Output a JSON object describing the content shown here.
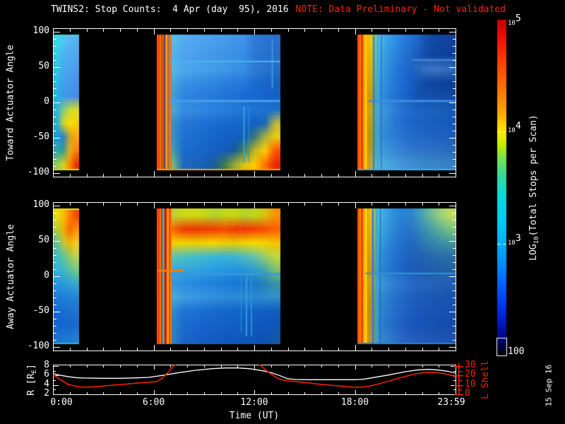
{
  "page": {
    "title": "TWINS2: Stop Counts:  4 Apr (day  95), 2016",
    "note": "NOTE: Data Preliminary - Not validated",
    "date_stamp": "15 Sep 16",
    "colors": {
      "background": "#000000",
      "foreground": "#ffffff",
      "alert": "#ff2000"
    }
  },
  "chart_data": [
    {
      "type": "heatmap",
      "id": "toward",
      "ylabel": "Toward Actuator Angle",
      "ylim": [
        -100,
        100
      ],
      "ytick_labels": [
        "100",
        "50",
        "0",
        "-50",
        "-100"
      ],
      "ytick_values": [
        100,
        50,
        0,
        -50,
        -100
      ],
      "x_range_hours": [
        0,
        24
      ],
      "grid": "off",
      "chunks": [
        {
          "h0": 0.05,
          "h1": 1.55,
          "top_edge": "#40d8e8",
          "bottom_edge": "#d8dc20",
          "rows": [
            "38d8e8 50c8f0 58b8f0 58b0f0",
            "34cce8 4cb4f0 52acf0 52a6ee",
            "30c4e6 46aaee 4ea2ee 4c9cec",
            "2cbae4 42a2ec 4a9aec 4892ea",
            "28b2e2 3e9aea 4692ea 448ae8",
            "30b4d4 80cc80 c0dc38 e0dc20",
            "28acd0 d8d028 f8e000 f8d400",
            "1c9cd8 2a84cc c8a030 ffa800",
            "28a4b0 3c9c90 e0b020 ff8000",
            "90cc58 d0d420 ff8800 e83000"
          ]
        },
        {
          "h0": 6.2,
          "h1": 13.55,
          "stripe_hours": 0.85,
          "bottom_edge": "#f0a800",
          "stripes": [
            "#ff6000",
            "#e83000",
            "#ff9000",
            "#c02800",
            "#ff7800",
            "#183cc0",
            "#ff5000",
            "#ffb800",
            "#f04000",
            "#30b8d8",
            "#ff6800"
          ],
          "hstreaks": [
            {
              "a": 58,
              "x0": 0.1,
              "x1": 1,
              "c": "#50b0f0",
              "w": 2
            },
            {
              "a": 2,
              "x0": 0.1,
              "x1": 1,
              "c": "#48a0e8",
              "w": 3
            }
          ],
          "vstreaks": [
            {
              "f": 0.7,
              "a0": -5,
              "a1": -85,
              "c": "#34a0e0",
              "w": 2
            },
            {
              "f": 0.74,
              "a0": -5,
              "a1": -85,
              "c": "#2e90dc",
              "w": 1
            },
            {
              "f": 0.93,
              "a0": 90,
              "a1": 20,
              "c": "#3c96e8",
              "w": 2
            }
          ],
          "rows": [
            "ff5800 58c0e8 56acf0 52a8f0 4ea4ee 4aa0ec 469cea 4296e8 3e92e8 2e7ad6 2a74d0 2870cc",
            "ff5800 50b8e4 4ea4ee 4aa0ec 469cea 4298e8 3e94e6 3a90e6 368ce4 2a78d4 2672ce 246cc8",
            "ff5800 54bce6 50aaee 4ca6ec 48a2ea 449eea 409ae8 3c94e6 3890e4 2c7cd6 2876d0 266fca",
            "ff5800 44aadc 3c92e6 388ee4 348ae2 3086e0 2c80de 287cdc 2478da 1c6cd0 1a66c8 1862c2",
            "ff5800 3ca2d6 3284e0 2e80de 2a7cdc 2678da 2274d8 1e70d6 1a6cd2 1868d0 1664cc 1562c8",
            "ff6000 48acd4 3a90e4 368ce2 3288e0 2e84de 2a80dc 267cda 2278d6 2074d4 1e72d0 1c70ce",
            "ff6000 3494cc 2678d6 2274d4 1e70d2 1c6cd0 1868ce 1666cc 1464ca 1260c6 1c68b8 c0b838",
            "ff6000 3294c8 2272d2 1e6ed0 1a6ace 1866cc 1562c8 1260c6 125eb8 3a7a78 a8b040 f0cc10",
            "ff5800 40a0b0 1e6ccc 1a68ca 1864c8 1560c4 125cc0 155c9c 48824c c0b824 fcd000 ff5000",
            "ff5800 78bc78 2068c0 1c64bc 1a60b8 185c9c 3c7850 90a838 e0c410 ffc800 ff7000 e82800"
          ]
        },
        {
          "h0": 18.15,
          "h1": 24.0,
          "stripe_hours": 0.55,
          "bottom_edge": "#38b8e0",
          "stripes": [
            "#ff4800",
            "#ff7800",
            "#e83000",
            "#ff9800",
            "#ffd000"
          ],
          "hstreaks": [
            {
              "a": 2,
              "x0": 0.12,
              "x1": 1,
              "c": "#3c8ce0",
              "w": 3
            },
            {
              "a": 60,
              "x0": 0.55,
              "x1": 1,
              "c": "#3c80d4",
              "w": 3
            }
          ],
          "vstreaks": [
            {
              "f": 0.16,
              "a0": 95,
              "a1": -95,
              "c": "#2a7ad8",
              "w": 2
            },
            {
              "f": 0.2,
              "a0": 95,
              "a1": -95,
              "c": "#38a8e0",
              "w": 2
            },
            {
              "f": 0.24,
              "a0": 95,
              "a1": -95,
              "c": "#1c5cc8",
              "w": 1
            }
          ],
          "rows": [
            "ff6000 f8c800 54c0dc 3ca4e8 3090e4 2880dc 2272d4 1c64c4 1350ac 1146a4 1044a0 0f429c",
            "ff6000 f0bc00 4cb8da 3698e4 2c86de 2476d6 1e6acc 1858ba 124aa8 0f44a0 0e429c 0d409a",
            "ff6000 e8b400 44b0d8 3292e2 287ed8 2070d2 1a64c8 2e68b8 3a74c2 3c76c4 3872c0 346ebc",
            "ff6000 dcac00 3ca6d6 2e8cde 2678d6 1e6cd0 1760c6 1452b0 1048a4 0e449e 0d429a 0c4098",
            "ff6000 d0a000 369cd4 2a86dc 2274d4 1c68ce 145cc2 1252b2 1350ac 144ea8 134ca6 124aa4",
            "ff6800 d4a810 44a4d6 3892e0 307ed8 2872d2 226acc 1e64c4 1c62c0 1b60bc 1a5eba 195cb8",
            "ff6800 c4a000 3c9cd2 3088da 2878d4 226ed0 1e66ca 1b62c6 1960c2 185ec0 175cbc 165aba",
            "ff6800 bc9800 3a9ad0 3288d8 2c7cd4 2874d0 246ccc 2268c8 2066c4 1f64c2 1e62be 1d60bc",
            "ff7000 c09c18 42a2d2 3c94da 3888d6 3480d2 3078ce 2e74ca 2c72c8 2b70c4 2a6ec2 296cc0",
            "ff7000 c8a42c 54b4d8 4ca6de 46a0da 4296d6 3e90d2 3c8cce 3a88cc 3986c8 3884c6 3782c4"
          ]
        }
      ]
    },
    {
      "type": "heatmap",
      "id": "away",
      "ylabel": "Away Actuator Angle",
      "ylim": [
        -100,
        100
      ],
      "ytick_labels": [
        "100",
        "50",
        "0",
        "-50",
        "-100"
      ],
      "ytick_values": [
        100,
        50,
        0,
        -50,
        -100
      ],
      "x_range_hours": [
        0,
        24
      ],
      "grid": "off",
      "chunks": [
        {
          "h0": 0.05,
          "h1": 1.55,
          "top_edge": "#e8e410",
          "bottom_edge": "#38b0d8",
          "rows": [
            "e8dc18 f8c000 ff8000 f84800",
            "b0cc38 f0b000 ff6800 ff9000",
            "60c490 c0c840 f0b800 f8cc20",
            "40bcc0 60c49c 90cc68 c0d448",
            "30b4dc 40b8c4 58c0a4 78c884",
            "2896e0 2c9cda 32a2d4 38a8cc",
            "1e7cda 2080d8 2284d6 2488d4",
            "186cd4 1a6ed2 1c72d0 1e76ce",
            "1464d0 1566ce 1668cc 186acc",
            "1a72d2 1c76d2 1e7ad2 2080d2"
          ]
        },
        {
          "h0": 6.2,
          "h1": 13.55,
          "stripe_hours": 0.85,
          "stripes": [
            "#ff5800",
            "#f03000",
            "#ff8800",
            "#d02800",
            "#30b0d0",
            "#ff6800",
            "#1838b8",
            "#ff4800",
            "#ffc000",
            "#e83800",
            "#ff7000"
          ],
          "hstreaks": [
            {
              "a": 8,
              "x0": 0,
              "x1": 0.22,
              "c": "#ff7800",
              "w": 3
            },
            {
              "a": 3,
              "x0": 0.1,
              "x1": 1,
              "c": "#3898d8",
              "w": 3
            }
          ],
          "vstreaks": [
            {
              "f": 0.72,
              "a0": 5,
              "a1": -85,
              "c": "#30a0d8",
              "w": 2
            },
            {
              "f": 0.76,
              "a0": 5,
              "a1": -85,
              "c": "#2a92d4",
              "w": 2
            },
            {
              "f": 0.68,
              "a0": 0,
              "a1": -80,
              "c": "#2c96d6",
              "w": 1
            }
          ],
          "rows": [
            "ff5000 b8d238 c8d81c d0da14 c4d71e b4d22c c0d622 c8d818 b4d02c c0d620 d8c414 f89000",
            "ff5000 f86800 f23804 ee3202 f03404 f43a02 f84402 f23602 f03408 f43c04 f84a00 ff6000",
            "ff5800 f8d000 f4d600 eed200 f2d600 f6da00 eed200 e8ce00 f0d600 f8de00 f4d400 f8c000",
            "ff5800 60c4ac 4cc4bc 46c0c6 40bcce 3cb8d6 38b4da 3eb6d2 4cbec2 68c4a4 98ce6c c0d83c",
            "ff5800 3cacda 34a8de 30a4e2 2ca0e4 289ce6 2498e4 2294e0 2896d6 2e9ecc 48aaa8 80c070",
            "ff5800 3498d8 2c8ee0 2889e0 2485de 2081dc 1c7dda 1a79d6 1875d2 1a76cc 2482b8 3694a4",
            "ff6000 4cacd6 3e9ee2 3a9ae2 3696e0 3292de 2e8edc 2c8cd8 2a8ad6 2a88d2 2e8cce 3290cc",
            "ff6000 2e8ccc 2276d6 1e72d4 1a6ed2 186ad0 1668cc 1466ca 1364c8 1262c6 1160c2 105ec0",
            "ff6000 2c84c8 1e6cd0 1a68ce 1864cc 1662ca 1460c6 125ec4 115cc2 105ac0 0f58bc 0e56ba",
            "ff5800 2e84c4 1c66ca 1862c8 165ec6 145cc2 125ac0 1158be 1056bc 0f54b8 0e52b6 145aa8"
          ]
        },
        {
          "h0": 18.15,
          "h1": 24.0,
          "stripe_hours": 0.55,
          "bottom_edge": "#2a84d6",
          "stripes": [
            "#ff5000",
            "#ff8000",
            "#f03800",
            "#ffa000",
            "#ffd800"
          ],
          "hstreaks": [
            {
              "a": 4,
              "x0": 0.08,
              "x1": 1,
              "c": "#3490d4",
              "w": 2
            }
          ],
          "vstreaks": [
            {
              "f": 0.15,
              "a0": 95,
              "a1": -95,
              "c": "#2878d4",
              "w": 2
            },
            {
              "f": 0.19,
              "a0": 95,
              "a1": -95,
              "c": "#38a4dc",
              "w": 2
            },
            {
              "f": 0.23,
              "a0": 95,
              "a1": -95,
              "c": "#1c58c4",
              "w": 1
            }
          ],
          "rows": [
            "ff5800 f0c000 48bcd8 3aa2e0 2e8ede 2a82d6 2e84cc 3e98c0 5cb2a4 84c688 a8d670 c0dc60",
            "ff5800 e4b400 42b4d6 3498dc 2c86d6 2678ce 2974c6 3284bc 3e96b0 50a8a0 68b88e 7cc47e",
            "ff5800 dcac00 3aaad4 2e8eda 267cd2 2270ca 2468c2 2a72ba 3280b2 3888ac 3e92a4 44989e",
            "ff5800 d4a400 349ed2 2a84d6 2272ce 1e68c6 1f60be 2162b6 2568b0 276cac 296eaa 2b70a6",
            "ff5800 cc9c00 3096d0 287ad2 2070cc 1c64c4 1b5cbc 1c5ab4 1e5eae 1f60aa 2062a6 2164a4",
            "ff6000 d4a410 3ea4d2 3890da 327ed4 2c74ce 286cc8 2668c2 2566be 2464ba 2362b6 2260b4",
            "ff6000 c49c00 3696ca 2c80d0 2672cc 2268c6 1e60c0 1c5cbc 1b5ab8 1a58b4 1956b2 1854ae",
            "ff6000 bc9400 3292c8 2a7cce 2470ca 2066c4 1c5ebe 1a58ba 1956b6 1854b4 1752b0 1650ae",
            "ff6000 bc9810 308cc6 2876cc 226ac8 1e60c2 1a58bc 1854b8 1752b4 1650b2 154eae 144cac",
            "ff6000 c49c20 3894c8 327ecc 2c72c8 2866c4 245ec0 225abc 2058b8 1f56b6 1e54b2 1d52b0"
          ]
        }
      ]
    },
    {
      "type": "line",
      "id": "ephemeris",
      "xlabel": "Time (UT)",
      "xtick_labels": [
        "0:00",
        "6:00",
        "12:00",
        "18:00",
        "23:59"
      ],
      "xtick_hours": [
        0,
        6,
        12,
        18,
        24
      ],
      "left_axis": {
        "label_pre": "R [R",
        "label_sub": "E",
        "label_post": "]",
        "ticks": [
          "8",
          "6",
          "4",
          "2"
        ],
        "tick_values": [
          8,
          6,
          4,
          2
        ],
        "range": [
          2,
          8.3
        ],
        "color": "#ffffff"
      },
      "right_axis": {
        "label": "L Shell",
        "ticks": [
          "30",
          "20",
          "10",
          "0"
        ],
        "tick_values": [
          30,
          20,
          10,
          0
        ],
        "range": [
          0,
          31.5
        ],
        "color": "#ff2000"
      },
      "series": [
        {
          "name": "R",
          "color": "#ffffff",
          "points": [
            [
              0,
              6.4
            ],
            [
              0.5,
              6.0
            ],
            [
              1,
              5.7
            ],
            [
              1.5,
              5.5
            ],
            [
              2,
              5.45
            ],
            [
              3,
              5.4
            ],
            [
              4,
              5.4
            ],
            [
              5,
              5.5
            ],
            [
              5.7,
              5.6
            ],
            [
              6.5,
              6.0
            ],
            [
              7.5,
              6.6
            ],
            [
              8.5,
              7.1
            ],
            [
              9.5,
              7.45
            ],
            [
              10.3,
              7.6
            ],
            [
              11,
              7.6
            ],
            [
              11.7,
              7.45
            ],
            [
              12.5,
              7.0
            ],
            [
              13,
              6.6
            ],
            [
              13.5,
              6.0
            ],
            [
              14,
              5.3
            ],
            [
              14.5,
              5.15
            ],
            [
              15,
              5.1
            ],
            [
              16,
              5.1
            ],
            [
              17,
              5.1
            ],
            [
              18,
              5.1
            ],
            [
              18.5,
              5.2
            ],
            [
              19,
              5.5
            ],
            [
              20,
              6.1
            ],
            [
              21,
              6.8
            ],
            [
              21.8,
              7.2
            ],
            [
              22.4,
              7.3
            ],
            [
              23,
              7.15
            ],
            [
              23.5,
              6.9
            ],
            [
              24,
              6.5
            ]
          ]
        },
        {
          "name": "L Shell",
          "color": "#ff2000",
          "points": [
            [
              0,
              21
            ],
            [
              0.4,
              16
            ],
            [
              0.9,
              10.5
            ],
            [
              1.5,
              8
            ],
            [
              1.9,
              7.5
            ],
            [
              2.5,
              8
            ],
            [
              3.5,
              9.5
            ],
            [
              4.5,
              11
            ],
            [
              5.5,
              12.5
            ],
            [
              6.2,
              13.5
            ],
            [
              6.5,
              17
            ],
            [
              6.9,
              24
            ],
            [
              7.3,
              32
            ],
            [
              7.6,
              40
            ],
            [
              11.9,
              40
            ],
            [
              12.3,
              32
            ],
            [
              12.8,
              24
            ],
            [
              13.3,
              18
            ],
            [
              13.6,
              15.5
            ],
            [
              14,
              14.5
            ],
            [
              15,
              12.5
            ],
            [
              16,
              10.5
            ],
            [
              17,
              9
            ],
            [
              17.8,
              7.8
            ],
            [
              18.3,
              7.5
            ],
            [
              18.8,
              8.5
            ],
            [
              19.5,
              11.5
            ],
            [
              20.3,
              15.5
            ],
            [
              21,
              19
            ],
            [
              21.7,
              22
            ],
            [
              22.3,
              23.5
            ],
            [
              22.8,
              23.2
            ],
            [
              23.3,
              22
            ],
            [
              23.7,
              20.5
            ],
            [
              24,
              18.5
            ]
          ]
        }
      ]
    },
    {
      "type": "colorbar",
      "label_pre": "LOG",
      "label_sub": "10",
      "label_post": "(Total Stops per Scan)",
      "tick_labels": [
        {
          "base": "10",
          "exp": "5",
          "frac": 0
        },
        {
          "base": "10",
          "exp": "4",
          "frac": 0.333
        },
        {
          "base": "10",
          "exp": "3",
          "frac": 0.667
        },
        {
          "text": "100",
          "frac": 1
        }
      ],
      "stops": [
        [
          0,
          "#c40000"
        ],
        [
          0.05,
          "#ee0c00"
        ],
        [
          0.12,
          "#ff3c00"
        ],
        [
          0.2,
          "#ff7000"
        ],
        [
          0.27,
          "#ffa000"
        ],
        [
          0.31,
          "#ffd000"
        ],
        [
          0.345,
          "#f4f000"
        ],
        [
          0.375,
          "#c0ee00"
        ],
        [
          0.42,
          "#6ee05e"
        ],
        [
          0.47,
          "#2edca0"
        ],
        [
          0.52,
          "#0cdcd8"
        ],
        [
          0.6,
          "#00ccf4"
        ],
        [
          0.67,
          "#00b0fa"
        ],
        [
          0.73,
          "#008cff"
        ],
        [
          0.79,
          "#0060ff"
        ],
        [
          0.85,
          "#0034f4"
        ],
        [
          0.9,
          "#0018c8"
        ],
        [
          0.95,
          "#000678"
        ],
        [
          0.985,
          "#000224"
        ],
        [
          1,
          "#000000"
        ]
      ]
    }
  ]
}
